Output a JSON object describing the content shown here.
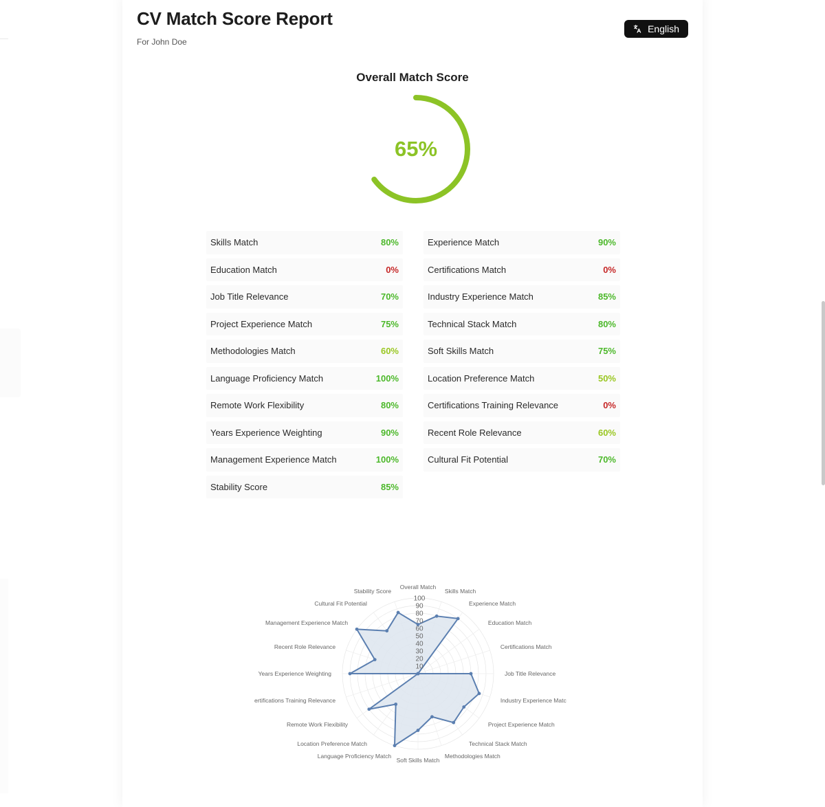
{
  "header": {
    "title": "CV Match Score Report",
    "subtitle": "For John Doe",
    "language_button": {
      "label": "English",
      "icon": "translate-icon"
    }
  },
  "overall": {
    "heading": "Overall Match Score",
    "value_label": "65%",
    "value": 65,
    "color": "#8cc326"
  },
  "colors": {
    "high": "#4cb82a",
    "mid": "#9ac722",
    "zero": "#c62828",
    "radar_stroke": "#5b7fb0",
    "radar_fill": "#dde5ef"
  },
  "metrics": [
    {
      "label": "Skills Match",
      "value": "80%"
    },
    {
      "label": "Experience Match",
      "value": "90%"
    },
    {
      "label": "Education Match",
      "value": "0%"
    },
    {
      "label": "Certifications Match",
      "value": "0%"
    },
    {
      "label": "Job Title Relevance",
      "value": "70%"
    },
    {
      "label": "Industry Experience Match",
      "value": "85%"
    },
    {
      "label": "Project Experience Match",
      "value": "75%"
    },
    {
      "label": "Technical Stack Match",
      "value": "80%"
    },
    {
      "label": "Methodologies Match",
      "value": "60%"
    },
    {
      "label": "Soft Skills Match",
      "value": "75%"
    },
    {
      "label": "Language Proficiency Match",
      "value": "100%"
    },
    {
      "label": "Location Preference Match",
      "value": "50%"
    },
    {
      "label": "Remote Work Flexibility",
      "value": "80%"
    },
    {
      "label": "Certifications Training Relevance",
      "value": "0%"
    },
    {
      "label": "Years Experience Weighting",
      "value": "90%"
    },
    {
      "label": "Recent Role Relevance",
      "value": "60%"
    },
    {
      "label": "Management Experience Match",
      "value": "100%"
    },
    {
      "label": "Cultural Fit Potential",
      "value": "70%"
    },
    {
      "label": "Stability Score",
      "value": "85%"
    }
  ],
  "chart_data": {
    "type": "radar",
    "r_ticks": [
      "10",
      "20",
      "30",
      "40",
      "50",
      "60",
      "70",
      "80",
      "90",
      "100"
    ],
    "rlim": [
      0,
      100
    ],
    "categories": [
      "Overall Match",
      "Skills Match",
      "Experience Match",
      "Education Match",
      "Certifications Match",
      "Job Title Relevance",
      "Industry Experience Matc",
      "Project Experience Match",
      "Technical Stack Match",
      "Methodologies Match",
      "Soft Skills Match",
      "Language Proficiency Match",
      "Location Preference Match",
      "Remote Work Flexibility",
      "ertifications Training Relevance",
      "Years Experience Weighting",
      "Recent Role Relevance",
      "Management Experience Match",
      "Cultural Fit Potential",
      "Stability Score"
    ],
    "values": [
      65,
      80,
      90,
      0,
      0,
      70,
      85,
      75,
      80,
      60,
      75,
      100,
      50,
      80,
      0,
      90,
      60,
      100,
      70,
      85
    ]
  }
}
